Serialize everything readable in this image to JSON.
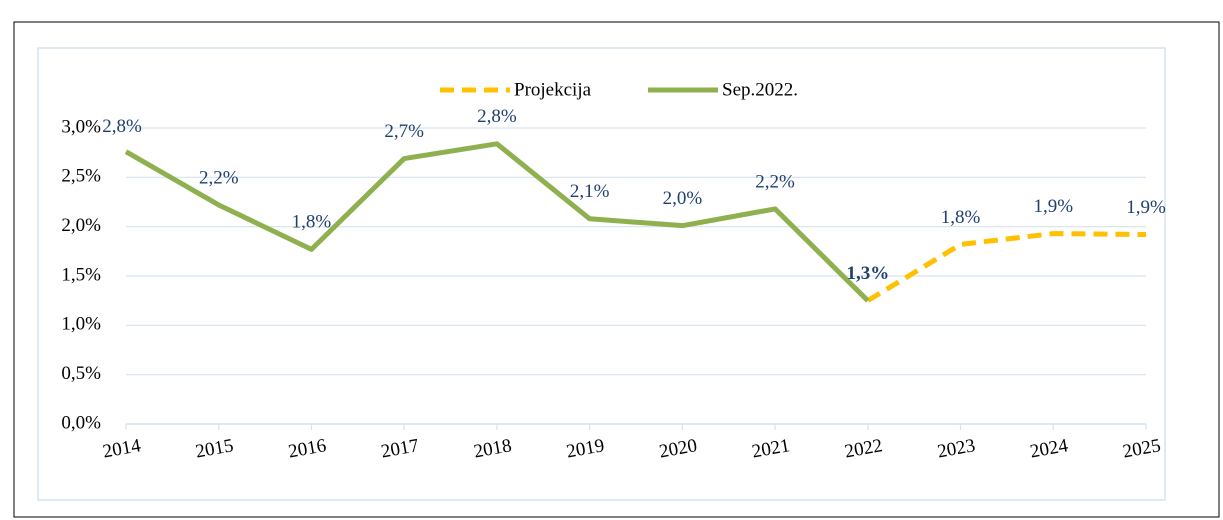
{
  "chart_data": {
    "type": "line",
    "categories": [
      "2014",
      "2015",
      "2016",
      "2017",
      "2018",
      "2019",
      "2020",
      "2021",
      "2022",
      "2023",
      "2024",
      "2025"
    ],
    "series": [
      {
        "name": "Projekcija",
        "color": "#ffc000",
        "dashed": true,
        "values": [
          null,
          null,
          null,
          null,
          null,
          null,
          null,
          null,
          1.25,
          1.82,
          1.93,
          1.92
        ],
        "value_labels": [
          null,
          null,
          null,
          null,
          null,
          null,
          null,
          null,
          null,
          "1,8%",
          "1,9%",
          "1,9%"
        ]
      },
      {
        "name": "Sep.2022.",
        "color": "#8fb04e",
        "dashed": false,
        "values": [
          2.76,
          2.22,
          1.77,
          2.69,
          2.84,
          2.08,
          2.01,
          2.18,
          1.25,
          null,
          null,
          null
        ],
        "value_labels": [
          "2,8%",
          "2,2%",
          "1,8%",
          "2,7%",
          "2,8%",
          "2,1%",
          "2,0%",
          "2,2%",
          "1,3%",
          null,
          null,
          null
        ]
      }
    ],
    "ylim": [
      0,
      3
    ],
    "yticks": [
      {
        "value": 0,
        "label": "0,0%"
      },
      {
        "value": 0.5,
        "label": "0,5%"
      },
      {
        "value": 1,
        "label": "1,0%"
      },
      {
        "value": 1.5,
        "label": "1,5%"
      },
      {
        "value": 2,
        "label": "2,0%"
      },
      {
        "value": 2.5,
        "label": "2,5%"
      },
      {
        "value": 3,
        "label": "3,0%"
      }
    ],
    "grid": true
  }
}
